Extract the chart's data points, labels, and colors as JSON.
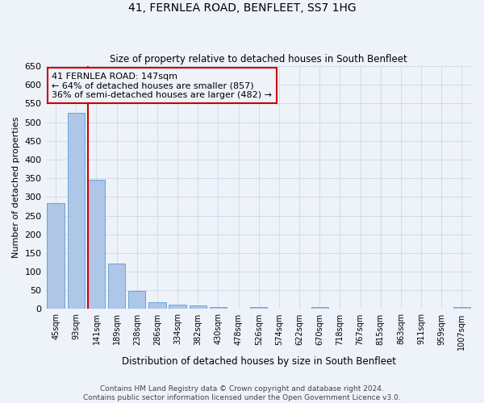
{
  "title": "41, FERNLEA ROAD, BENFLEET, SS7 1HG",
  "subtitle": "Size of property relative to detached houses in South Benfleet",
  "xlabel": "Distribution of detached houses by size in South Benfleet",
  "ylabel": "Number of detached properties",
  "categories": [
    "45sqm",
    "93sqm",
    "141sqm",
    "189sqm",
    "238sqm",
    "286sqm",
    "334sqm",
    "382sqm",
    "430sqm",
    "478sqm",
    "526sqm",
    "574sqm",
    "622sqm",
    "670sqm",
    "718sqm",
    "767sqm",
    "815sqm",
    "863sqm",
    "911sqm",
    "959sqm",
    "1007sqm"
  ],
  "values": [
    283,
    524,
    347,
    122,
    48,
    19,
    12,
    9,
    6,
    0,
    5,
    0,
    0,
    5,
    0,
    0,
    0,
    0,
    0,
    0,
    5
  ],
  "bar_color": "#aec6e8",
  "bar_edge_color": "#5a9bd4",
  "highlight_index": 2,
  "highlight_color": "#cc0000",
  "ylim": [
    0,
    650
  ],
  "yticks": [
    0,
    50,
    100,
    150,
    200,
    250,
    300,
    350,
    400,
    450,
    500,
    550,
    600,
    650
  ],
  "annotation_title": "41 FERNLEA ROAD: 147sqm",
  "annotation_line1": "← 64% of detached houses are smaller (857)",
  "annotation_line2": "36% of semi-detached houses are larger (482) →",
  "footer_line1": "Contains HM Land Registry data © Crown copyright and database right 2024.",
  "footer_line2": "Contains public sector information licensed under the Open Government Licence v3.0.",
  "background_color": "#eef2f9",
  "grid_color": "#c8d4e8",
  "fig_width": 6.0,
  "fig_height": 5.0,
  "dpi": 100
}
